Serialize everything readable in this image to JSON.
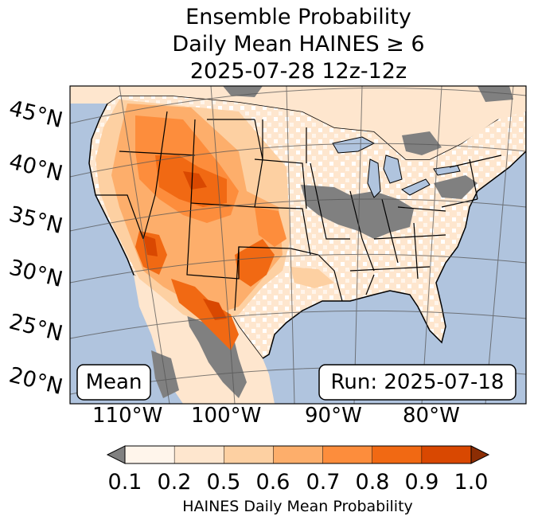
{
  "title": {
    "line1": "Ensemble Probability",
    "line2": "Daily Mean HAINES ≥ 6",
    "line3": "2025-07-28 12z-12z"
  },
  "map": {
    "latitude_labels": [
      "45°N",
      "40°N",
      "35°N",
      "30°N",
      "25°N",
      "20°N"
    ],
    "longitude_labels": [
      "110°W",
      "100°W",
      "90°W",
      "80°W"
    ],
    "mean_label": "Mean",
    "run_label": "Run: 2025-07-18",
    "colors": {
      "ocean": "#b0c4de",
      "no_data": "#808080",
      "bin_0_1_0_2": "#fff5eb",
      "bin_0_2_0_5": "#fee6ce",
      "bin_0_5_0_6": "#fdd0a2",
      "bin_0_6_0_7": "#fdae6b",
      "bin_0_7_0_8": "#fd8d3c",
      "bin_0_8_0_9": "#f16913",
      "bin_0_9_1_0": "#d94801",
      "over": "#8c2d04",
      "under": "#808080"
    }
  },
  "colorbar": {
    "tick_labels": [
      "0.1",
      "0.2",
      "0.5",
      "0.6",
      "0.7",
      "0.8",
      "0.9",
      "1.0"
    ],
    "bin_colors": [
      "#fff5eb",
      "#fee6ce",
      "#fdd0a2",
      "#fdae6b",
      "#fd8d3c",
      "#f16913",
      "#d94801"
    ],
    "label": "HAINES Daily Mean Probability"
  }
}
